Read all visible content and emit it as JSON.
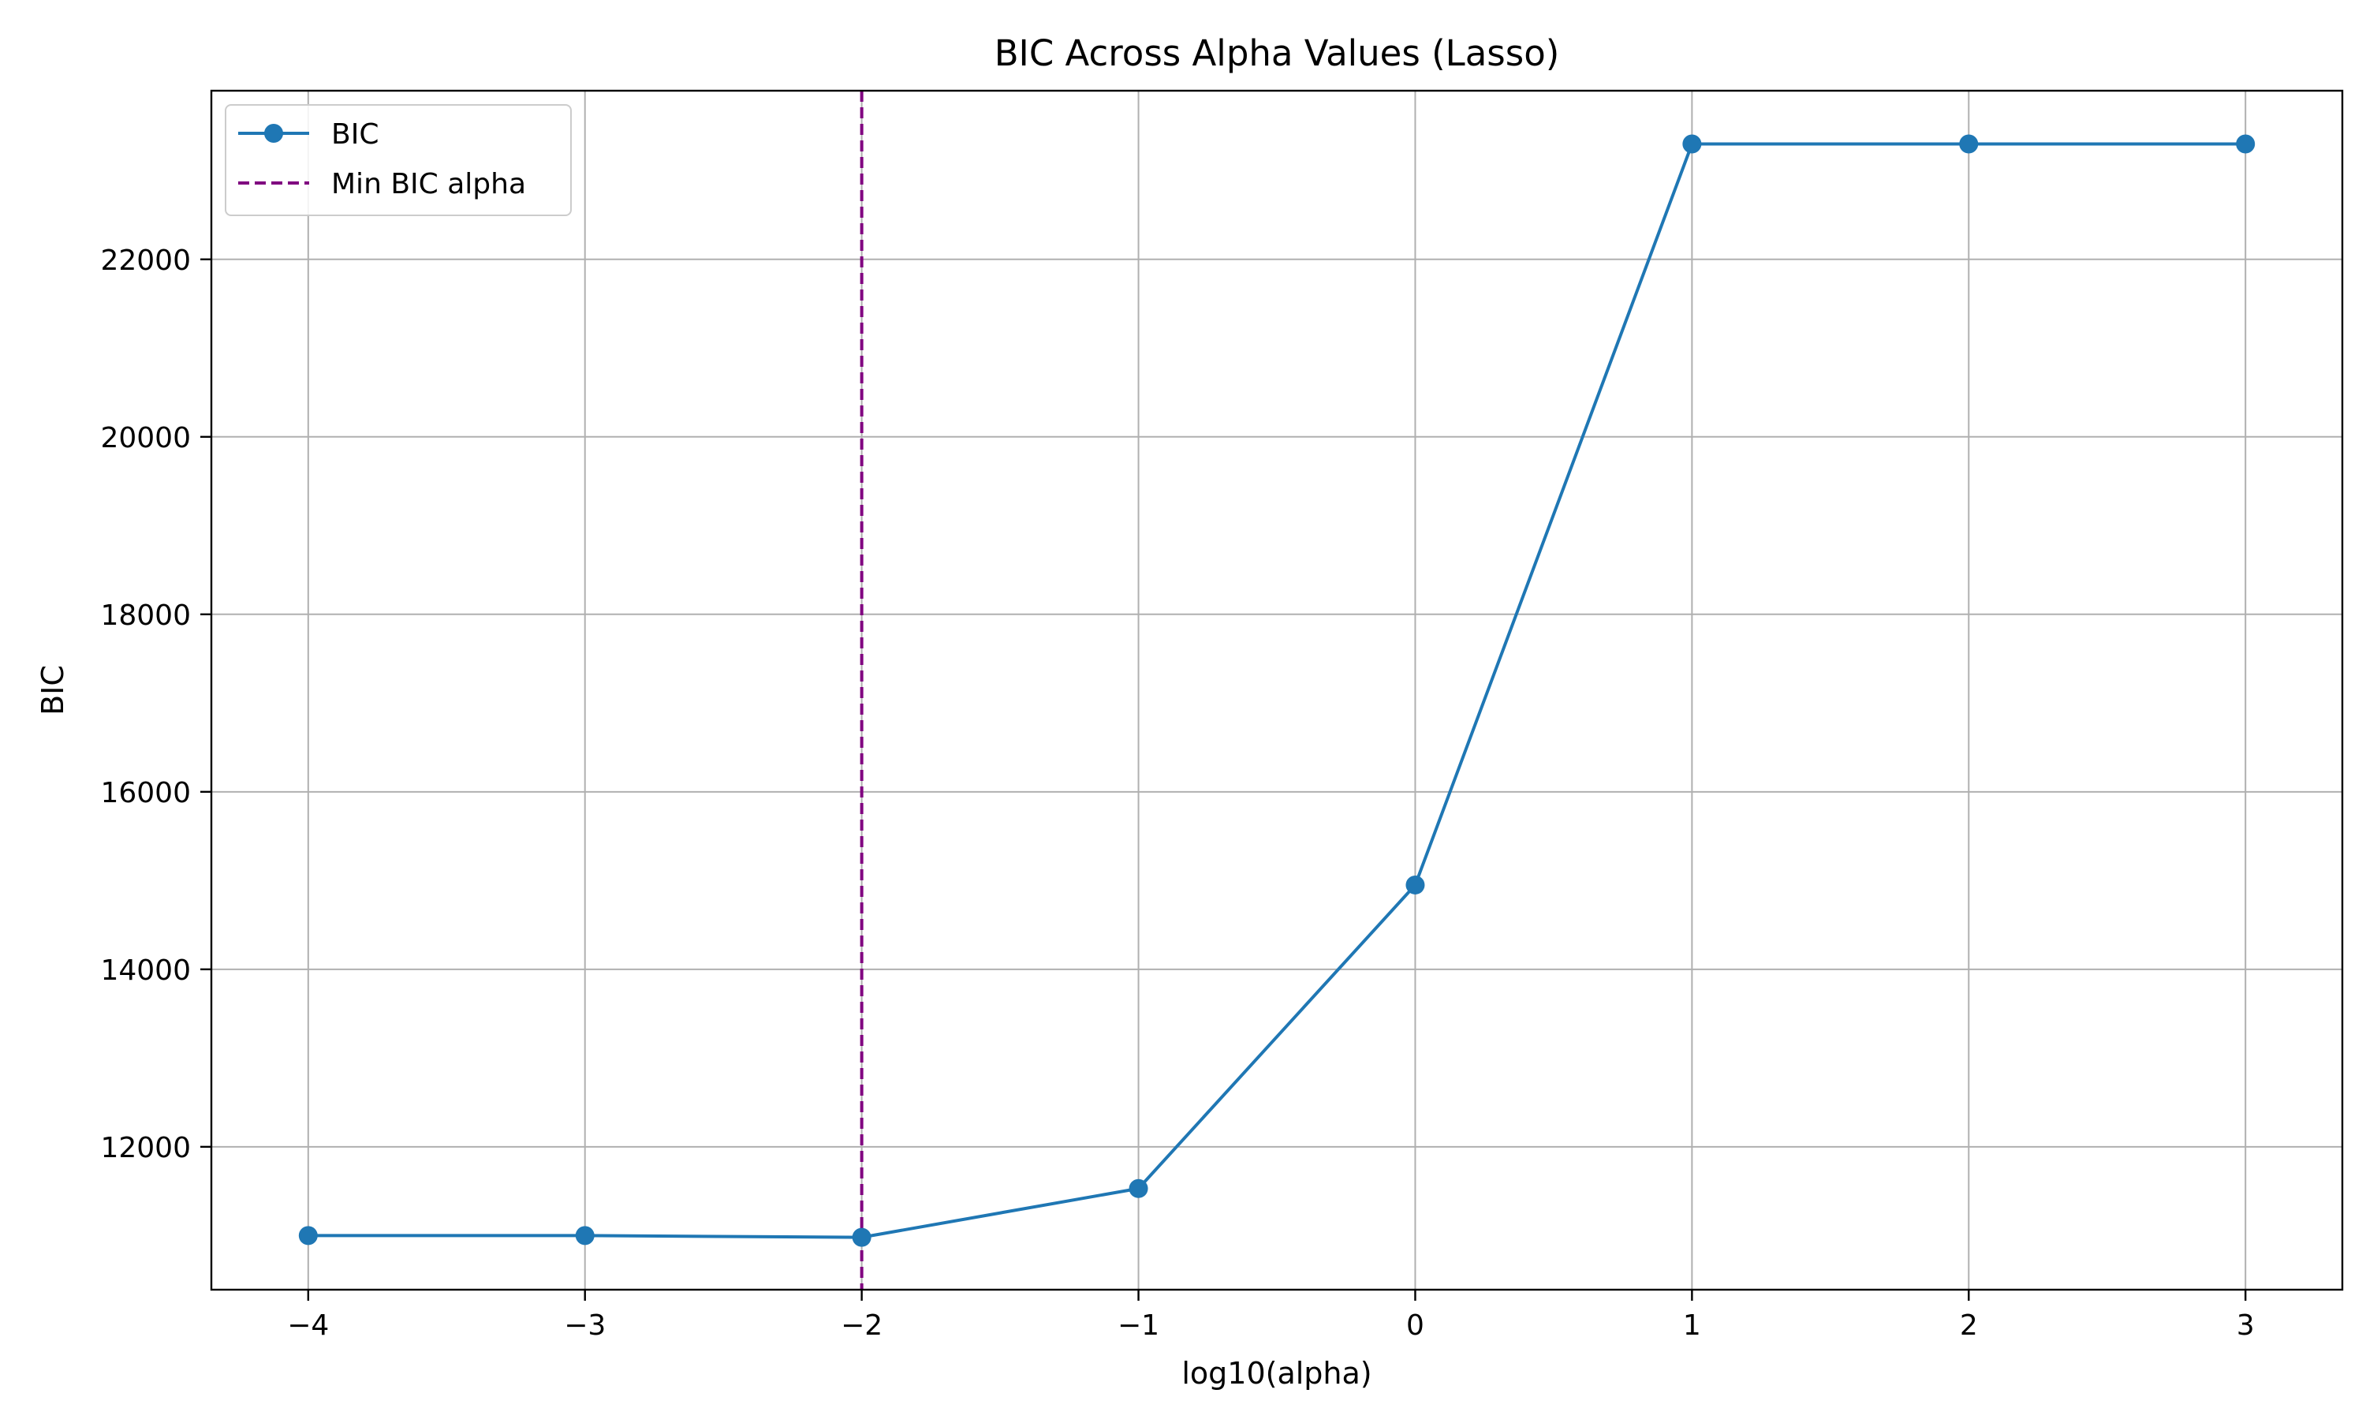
{
  "chart_data": {
    "type": "line",
    "title": "BIC Across Alpha Values (Lasso)",
    "xlabel": "log10(alpha)",
    "ylabel": "BIC",
    "x": [
      -4,
      -3,
      -2,
      -1,
      0,
      1,
      2,
      3
    ],
    "x_tick_values": [
      -4,
      -3,
      -2,
      -1,
      0,
      1,
      2,
      3
    ],
    "x_tick_labels": [
      "−4",
      "−3",
      "−2",
      "−1",
      "0",
      "1",
      "2",
      "3"
    ],
    "y_tick_values": [
      12000,
      14000,
      16000,
      18000,
      20000,
      22000
    ],
    "y_tick_labels": [
      "12000",
      "14000",
      "16000",
      "18000",
      "20000",
      "22000"
    ],
    "xlim": [
      -4.35,
      3.35
    ],
    "ylim": [
      10390,
      23900
    ],
    "grid": true,
    "legend_position": "top-left",
    "series": [
      {
        "name": "BIC",
        "color": "#1f77b4",
        "marker": "circle",
        "values": [
          11000,
          11000,
          10980,
          11530,
          14950,
          23300,
          23300,
          23300
        ]
      }
    ],
    "reference_lines": [
      {
        "name": "Min BIC alpha",
        "orientation": "vertical",
        "x": -2,
        "color": "#800080",
        "style": "dashed"
      }
    ]
  }
}
